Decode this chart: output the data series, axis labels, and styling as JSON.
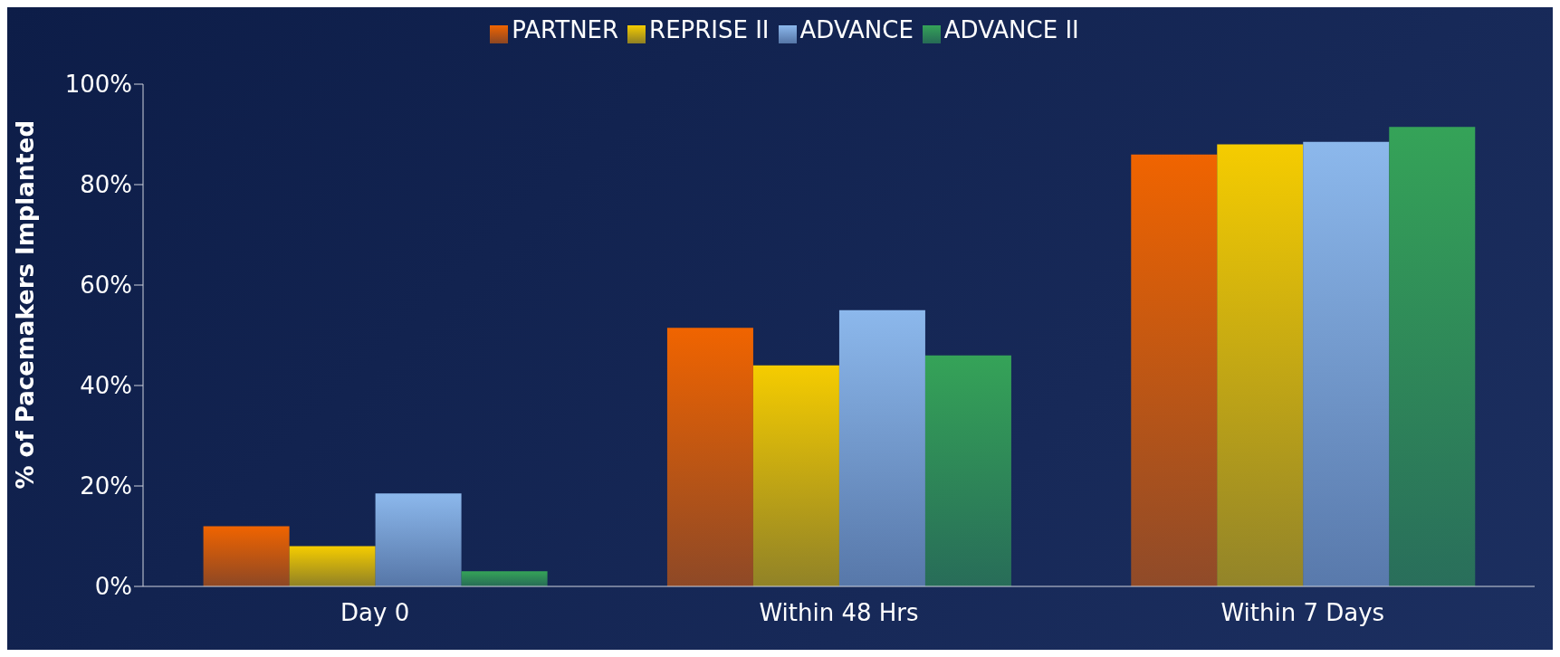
{
  "chart_data": {
    "type": "bar",
    "ylabel": "% of Pacemakers Implanted",
    "categories": [
      "Day 0",
      "Within 48 Hrs",
      "Within 7 Days"
    ],
    "series": [
      {
        "name": "PARTNER",
        "color": "#f06400",
        "values": [
          12,
          51.5,
          86
        ]
      },
      {
        "name": "REPRISE II",
        "color": "#f5cc00",
        "values": [
          8,
          44,
          88
        ]
      },
      {
        "name": "ADVANCE",
        "color": "#8cb8ec",
        "values": [
          18.5,
          55,
          88.5
        ]
      },
      {
        "name": "ADVANCE II",
        "color": "#35a358",
        "values": [
          3,
          46,
          91.5
        ]
      }
    ],
    "ylim": [
      0,
      100
    ],
    "yticks": [
      {
        "value": 0,
        "label": "0%"
      },
      {
        "value": 20,
        "label": "20%"
      },
      {
        "value": 40,
        "label": "40%"
      },
      {
        "value": 60,
        "label": "60%"
      },
      {
        "value": 80,
        "label": "80%"
      },
      {
        "value": 100,
        "label": "100%"
      }
    ],
    "grid": false,
    "legend": "top"
  }
}
